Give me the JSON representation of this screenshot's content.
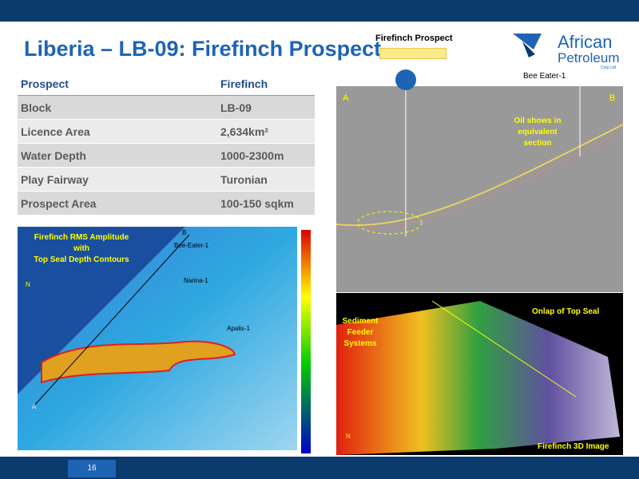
{
  "header": {
    "title": "Liberia – LB-09: Firefinch Prospect",
    "legend_label": "Firefinch Prospect",
    "logo_lines": [
      "African",
      "Petroleum",
      "Corp Ltd"
    ]
  },
  "table": {
    "rows": [
      [
        "Prospect",
        "Firefinch"
      ],
      [
        "Block",
        "LB-09"
      ],
      [
        "Licence Area",
        "2,634km²"
      ],
      [
        "Water Depth",
        "1000-2300m"
      ],
      [
        "Play Fairway",
        "Turonian"
      ],
      [
        "Prospect Area",
        "100-150 sqkm"
      ]
    ]
  },
  "map": {
    "title_lines": [
      "Firefinch RMS Amplitude",
      "with",
      "Top Seal Depth Contours"
    ],
    "north": "N",
    "point_a": "A",
    "point_b": "B",
    "wells": [
      "Bee-Eater-1",
      "Narina-1",
      "Apalis-1"
    ]
  },
  "seismic": {
    "well": "Bee Eater-1",
    "point_a": "A",
    "point_b": "B",
    "annotation_lines": [
      "Oil shows in",
      "equivalent",
      "section"
    ]
  },
  "image3d": {
    "onlap": "Onlap of Top Seal",
    "feeder_lines": [
      "Sediment",
      "Feeder",
      "Systems"
    ],
    "north": "N",
    "caption": "Firefinch 3D Image"
  },
  "footer": {
    "page": "16"
  }
}
